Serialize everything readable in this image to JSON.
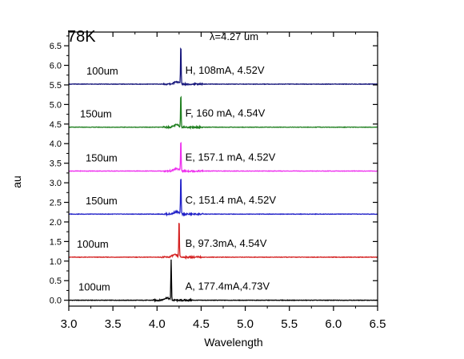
{
  "chart_data": {
    "type": "line",
    "title": "78K",
    "peak_annotation": "λ=4.27 um",
    "xlabel": "Wavelength",
    "ylabel": "au",
    "xlim": [
      3.0,
      6.5
    ],
    "ylim": [
      -0.15,
      6.85
    ],
    "x_ticks": [
      "3.0",
      "3.5",
      "4.0",
      "4.5",
      "5.0",
      "5.5",
      "6.0",
      "6.5"
    ],
    "y_ticks": [
      "0.0",
      "0.5",
      "1.0",
      "1.5",
      "2.0",
      "2.5",
      "3.0",
      "3.5",
      "4.0",
      "4.5",
      "5.0",
      "5.5",
      "6.0",
      "6.5"
    ],
    "grid": false,
    "legend": "none",
    "series": [
      {
        "color": "#000000",
        "baseline": 0.0,
        "peak_x": 4.16,
        "peak_y": 1.02,
        "size_label": "100um",
        "device_label": "A, 177.4mA,4.73V"
      },
      {
        "color": "#d42020",
        "baseline": 1.1,
        "peak_x": 4.25,
        "peak_y": 2.1,
        "size_label": "100um",
        "device_label": "B, 97.3mA, 4.54V"
      },
      {
        "color": "#2020c8",
        "baseline": 2.2,
        "peak_x": 4.27,
        "peak_y": 3.22,
        "size_label": "150um",
        "device_label": "C, 151.4 mA, 4.52V"
      },
      {
        "color": "#ee30ee",
        "baseline": 3.3,
        "peak_x": 4.27,
        "peak_y": 4.12,
        "size_label": "150um",
        "device_label": "E, 157.1 mA, 4.52V"
      },
      {
        "color": "#1f7f1f",
        "baseline": 4.42,
        "peak_x": 4.27,
        "peak_y": 5.3,
        "size_label": "150um",
        "device_label": "F, 160 mA, 4.54V"
      },
      {
        "color": "#14147a",
        "baseline": 5.52,
        "peak_x": 4.27,
        "peak_y": 6.55,
        "size_label": "100um",
        "device_label": "H, 108mA, 4.52V"
      }
    ]
  }
}
